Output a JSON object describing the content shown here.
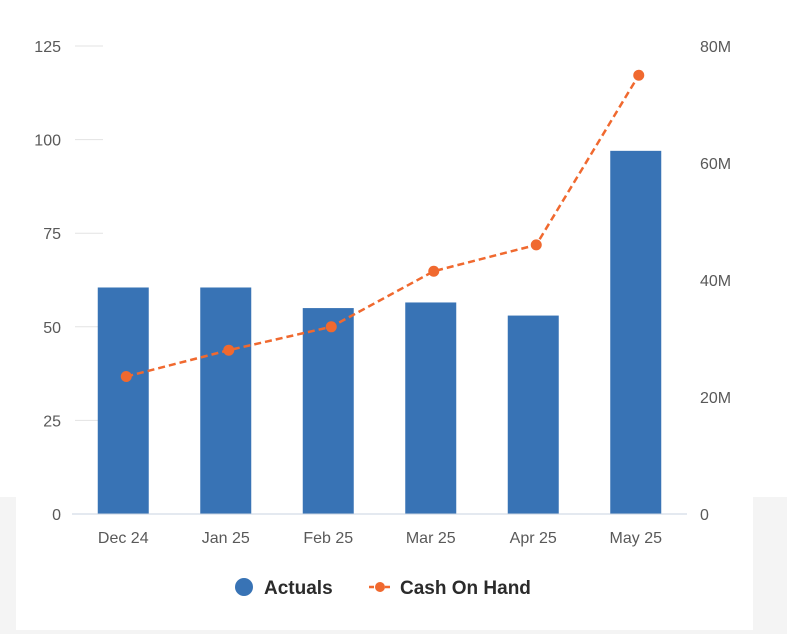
{
  "chart_data": {
    "type": "bar",
    "categories": [
      "Dec 24",
      "Jan 25",
      "Feb 25",
      "Mar 25",
      "Apr 25",
      "May 25"
    ],
    "series": [
      {
        "name": "Actuals",
        "type": "bar",
        "axis": "left",
        "color": "#3873b5",
        "values": [
          60.5,
          60.5,
          55,
          56.5,
          53,
          97
        ]
      },
      {
        "name": "Cash On Hand",
        "type": "line",
        "axis": "right",
        "color": "#f0692f",
        "line_style": "dashed",
        "values": [
          23.5,
          28,
          32,
          41.5,
          46,
          75
        ]
      }
    ],
    "y_left": {
      "ticks": [
        "0",
        "25",
        "50",
        "75",
        "100",
        "125"
      ],
      "range": [
        0,
        125
      ]
    },
    "y_right": {
      "ticks": [
        "0",
        "20M",
        "40M",
        "60M",
        "80M"
      ],
      "range": [
        0,
        80
      ]
    },
    "legend": {
      "position": "bottom-center"
    }
  }
}
